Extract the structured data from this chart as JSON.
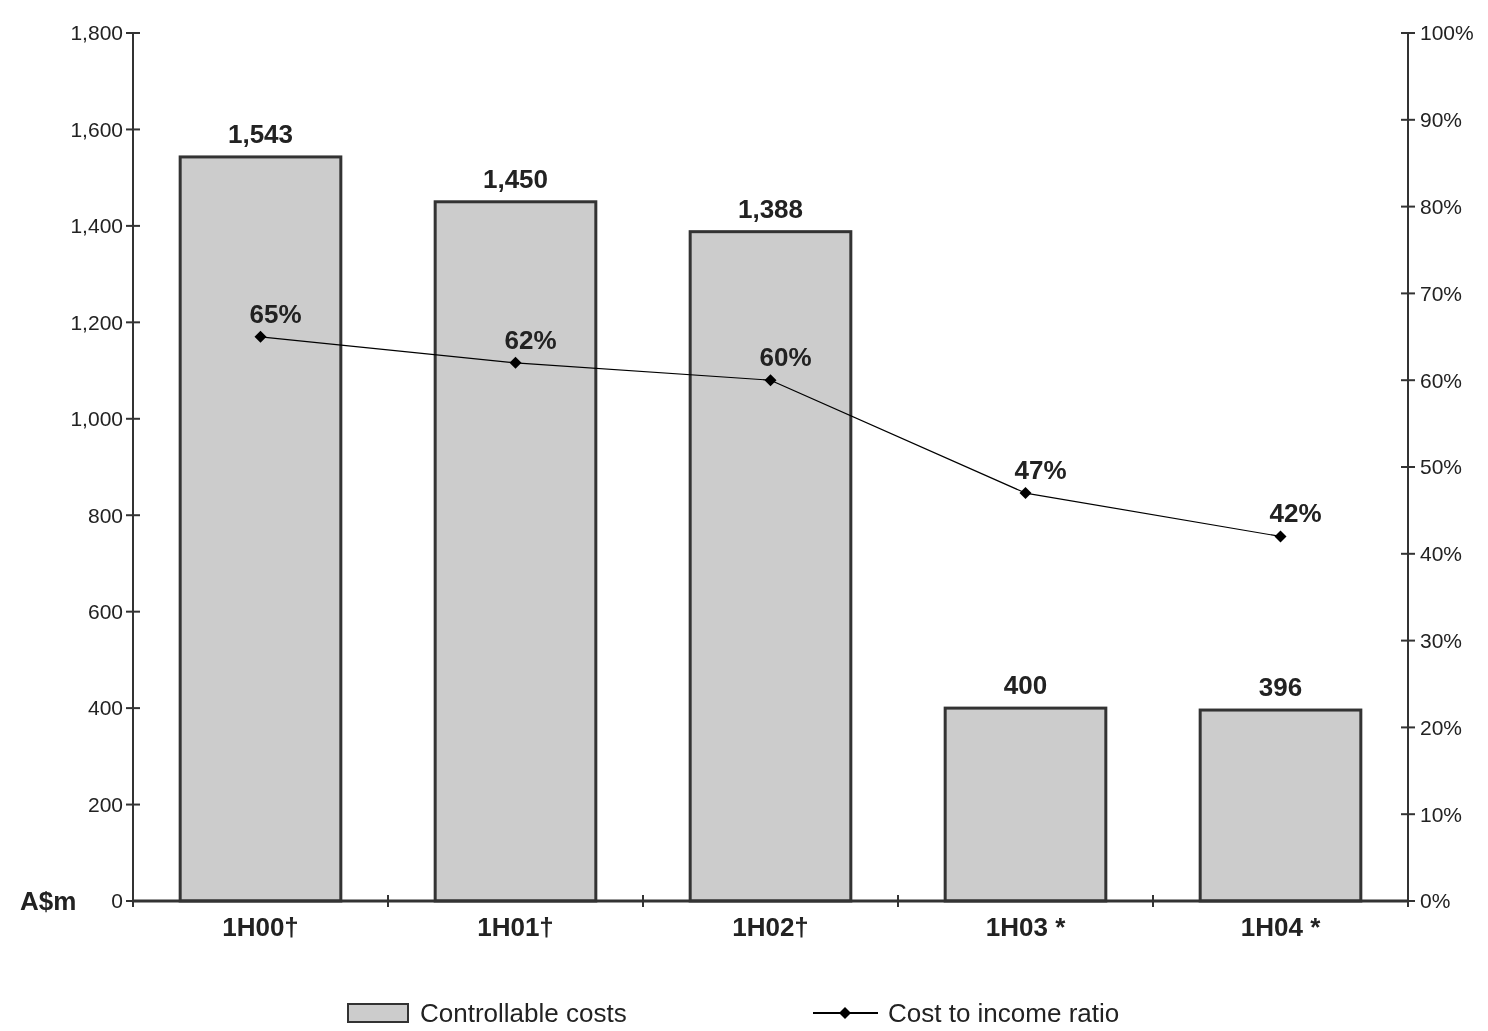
{
  "chart_data": {
    "type": "bar",
    "ylabel": "A$m",
    "categories": [
      "1H00†",
      "1H01†",
      "1H02†",
      "1H03 *",
      "1H04 *"
    ],
    "series": [
      {
        "name": "Controllable costs",
        "color": "#cccccc",
        "values": [
          1543,
          1450,
          1388,
          400,
          396
        ],
        "value_labels": [
          "1,543",
          "1,450",
          "1,388",
          "400",
          "396"
        ]
      },
      {
        "type": "line",
        "name": "Cost to income ratio",
        "color": "#000000",
        "axis": "y2",
        "marker": "diamond",
        "values": [
          65,
          62,
          60,
          47,
          42
        ],
        "value_labels": [
          "65%",
          "62%",
          "60%",
          "47%",
          "42%"
        ]
      }
    ],
    "ylim": [
      0,
      1800
    ],
    "yticks": [
      {
        "value": 0,
        "label": "0"
      },
      {
        "value": 200,
        "label": "200"
      },
      {
        "value": 400,
        "label": "400"
      },
      {
        "value": 600,
        "label": "600"
      },
      {
        "value": 800,
        "label": "800"
      },
      {
        "value": 1000,
        "label": "1,000"
      },
      {
        "value": 1200,
        "label": "1,200"
      },
      {
        "value": 1400,
        "label": "1,400"
      },
      {
        "value": 1600,
        "label": "1,600"
      },
      {
        "value": 1800,
        "label": "1,800"
      }
    ],
    "y2lim": [
      0,
      100
    ],
    "y2ticks": [
      {
        "value": 0,
        "label": "0%"
      },
      {
        "value": 10,
        "label": "10%"
      },
      {
        "value": 20,
        "label": "20%"
      },
      {
        "value": 30,
        "label": "30%"
      },
      {
        "value": 40,
        "label": "40%"
      },
      {
        "value": 50,
        "label": "50%"
      },
      {
        "value": 60,
        "label": "60%"
      },
      {
        "value": 70,
        "label": "70%"
      },
      {
        "value": 80,
        "label": "80%"
      },
      {
        "value": 90,
        "label": "90%"
      },
      {
        "value": 100,
        "label": "100%"
      }
    ],
    "legend": "bottom"
  }
}
